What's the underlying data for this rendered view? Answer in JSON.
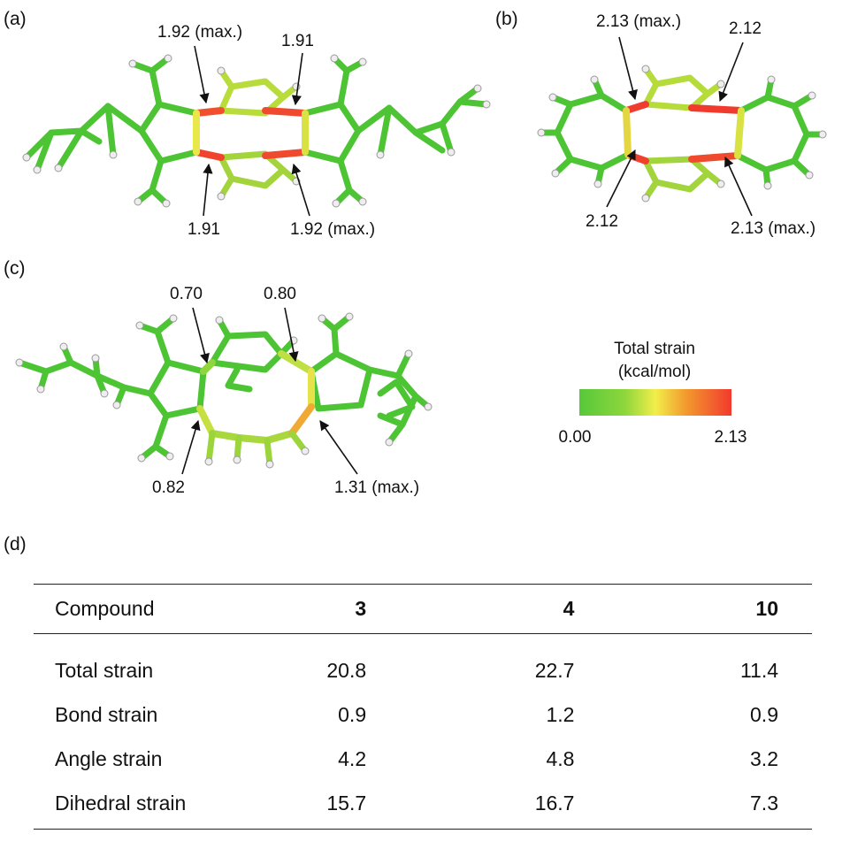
{
  "panels": {
    "a": {
      "label": "(a)",
      "annotations": [
        "1.92 (max.)",
        "1.91",
        "1.91",
        "1.92 (max.)"
      ]
    },
    "b": {
      "label": "(b)",
      "annotations": [
        "2.13 (max.)",
        "2.12",
        "2.12",
        "2.13 (max.)"
      ]
    },
    "c": {
      "label": "(c)",
      "annotations": [
        "0.70",
        "0.80",
        "0.82",
        "1.31 (max.)"
      ]
    },
    "d": {
      "label": "(d)"
    }
  },
  "colorbar": {
    "title_line1": "Total strain",
    "title_line2": "(kcal/mol)",
    "min_label": "0.00",
    "max_label": "2.13",
    "colors": [
      "#57c83a",
      "#f2ee4a",
      "#f24a2e"
    ]
  },
  "table": {
    "headers": [
      "Compound",
      "3",
      "4",
      "10"
    ],
    "rows": [
      [
        "Total strain",
        "20.8",
        "22.7",
        "11.4"
      ],
      [
        "Bond strain",
        "0.9",
        "1.2",
        "0.9"
      ],
      [
        "Angle strain",
        "4.2",
        "4.8",
        "3.2"
      ],
      [
        "Dihedral strain",
        "15.7",
        "16.7",
        "7.3"
      ]
    ]
  }
}
